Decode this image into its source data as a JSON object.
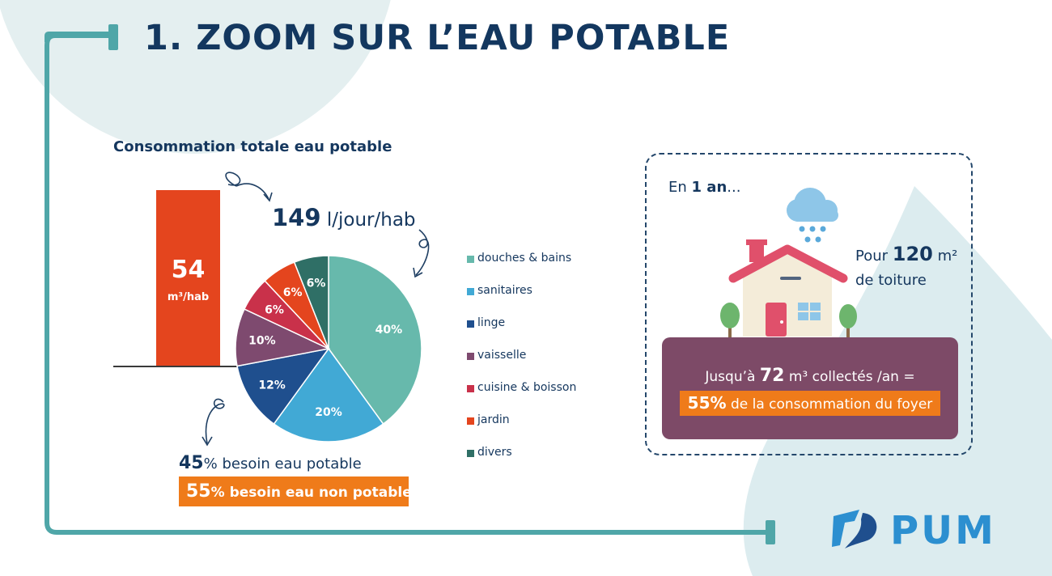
{
  "header": {
    "title": "1.  ZOOM SUR L’EAU POTABLE"
  },
  "section": {
    "subtitle": "Consommation totale eau potable"
  },
  "bar": {
    "value": "54",
    "unit": "m³/hab"
  },
  "daily": {
    "value": "149",
    "unit": " l/jour/hab"
  },
  "potable": {
    "pct": "45",
    "text": "% besoin eau potable"
  },
  "non_potable": {
    "pct": "55",
    "text": "% besoin eau non potable"
  },
  "chart_data": {
    "type": "pie",
    "categories": [
      "douches & bains",
      "sanitaires",
      "linge",
      "vaisselle",
      "cuisine & boisson",
      "jardin",
      "divers"
    ],
    "values": [
      40,
      20,
      12,
      10,
      6,
      6,
      6
    ],
    "labels": [
      "40%",
      "20%",
      "12%",
      "10%",
      "6%",
      "6%",
      "6%"
    ],
    "colors": [
      "#67b9ac",
      "#41a9d5",
      "#1f4f8e",
      "#7e4a6f",
      "#c9314a",
      "#e4451e",
      "#2f6f66"
    ],
    "legend_position": "right"
  },
  "panel": {
    "intro_prefix": "En ",
    "intro_bold": "1 an",
    "intro_suffix": "...",
    "roof_prefix": "Pour ",
    "roof_value": "120",
    "roof_unit": " m²",
    "roof_line2": "de toiture",
    "collect_prefix": "Jusqu’à ",
    "collect_value": "72",
    "collect_suffix": " m³ collectés /an =",
    "share_pct": "55%",
    "share_text": " de la consommation du foyer"
  },
  "logo": {
    "text": "PUM"
  },
  "colors": {
    "navy": "#13375f",
    "teal": "#4fa6a8",
    "orange": "#ef7b1a",
    "bar": "#e4451e",
    "purple": "#7d4a67",
    "logo_blue": "#2c8fd0"
  }
}
